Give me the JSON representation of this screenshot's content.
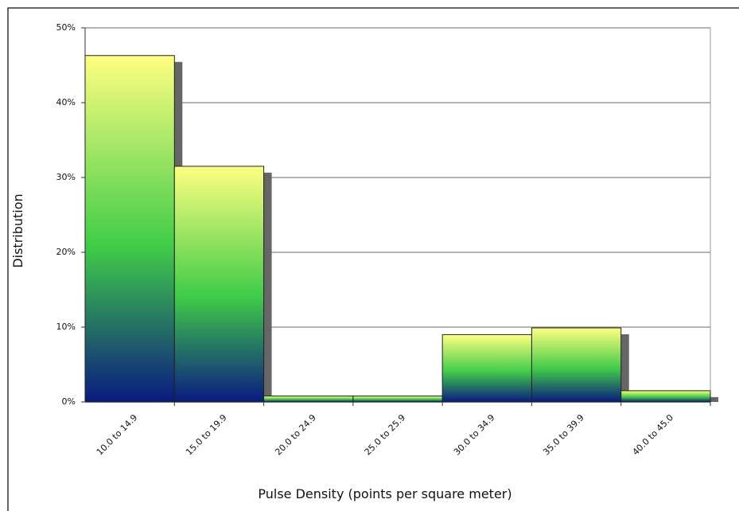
{
  "chart_data": {
    "type": "bar",
    "x_label": "Pulse Density (points per square meter)",
    "y_label": "Distribution",
    "categories": [
      "10.0 to 14.9",
      "15.0 to 19.9",
      "20.0 to 24.9",
      "25.0 to 25.9",
      "30.0 to 34.9",
      "35.0 to 39.9",
      "40.0 to 45.0"
    ],
    "values": [
      46.3,
      31.5,
      0.8,
      0.8,
      9.0,
      9.9,
      1.5
    ],
    "color_stops": [
      "#ffff80",
      "#40cc48",
      "#0a1a80"
    ],
    "ylim": [
      0,
      50
    ],
    "yticks": [
      {
        "value": 0,
        "label": "0%"
      },
      {
        "value": 10,
        "label": "10%"
      },
      {
        "value": 20,
        "label": "20%"
      },
      {
        "value": 30,
        "label": "30%"
      },
      {
        "value": 40,
        "label": "40%"
      },
      {
        "value": 50,
        "label": "50%"
      }
    ],
    "grid": true
  }
}
